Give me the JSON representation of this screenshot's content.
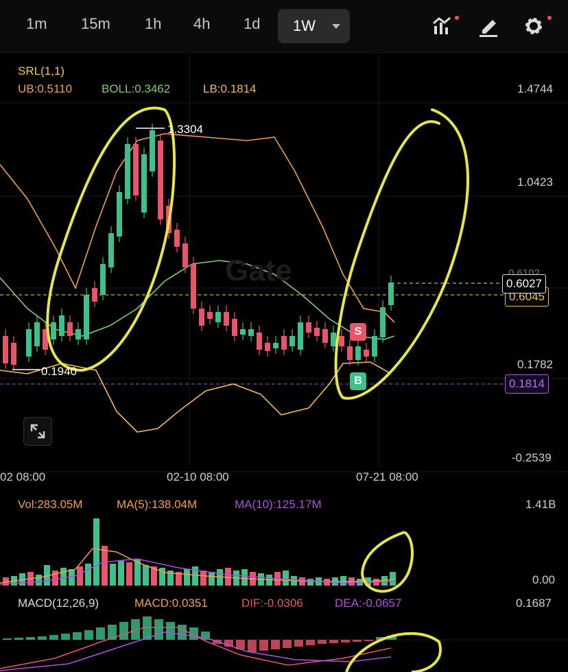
{
  "timeframes": [
    {
      "label": "1m",
      "active": false
    },
    {
      "label": "15m",
      "active": false
    },
    {
      "label": "1h",
      "active": false
    },
    {
      "label": "4h",
      "active": false
    },
    {
      "label": "1d",
      "active": false
    },
    {
      "label": "1W",
      "active": true
    }
  ],
  "indicators": {
    "srl": "SRL(1,1)",
    "ub": "UB:0.5110",
    "boll": "BOLL:0.3462",
    "lb": "LB:0.1814"
  },
  "price_axis": [
    "1.4744",
    "1.0423",
    "0.6102",
    "0.1782",
    "-0.2539"
  ],
  "markers": {
    "high": "1.3304",
    "low": "0.1940"
  },
  "price_boxes": {
    "last": "0.6027",
    "mark": "0.6045",
    "lb": "0.1814"
  },
  "trade_markers": {
    "sell": "S",
    "buy": "B"
  },
  "time_axis": [
    "02 08:00",
    "02-10 08:00",
    "07-21 08:00"
  ],
  "watermark": "Gate",
  "volume": {
    "vol": "Vol:283.05M",
    "ma5": "MA(5):138.04M",
    "ma10": "MA(10):125.17M",
    "axis_top": "1.41B",
    "axis_bottom": "0.00"
  },
  "macd": {
    "title": "MACD(12,26,9)",
    "macd": "MACD:0.0351",
    "dif": "DIF:-0.0306",
    "dea": "DEA:-0.0657",
    "axis_top": "0.1687"
  },
  "colors": {
    "up": "#3fbf8a",
    "down": "#e8556a",
    "ub": "#f0a050",
    "boll": "#7dd06a",
    "lb": "#f5b860",
    "ma10": "#b050e0",
    "highlight": "#e6e64a"
  },
  "icons": [
    "indicator-chart-icon",
    "pencil-draw-icon",
    "gear-settings-icon",
    "expand-icon",
    "caret-down-icon"
  ]
}
